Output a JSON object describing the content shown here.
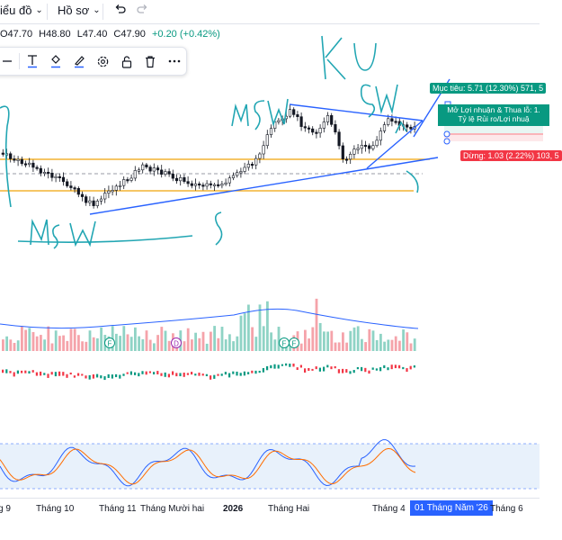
{
  "toolbar": {
    "chart_menu_label": "iểu đồ",
    "profile_menu_label": "Hồ sơ",
    "undo_icon": "undo-icon",
    "redo_icon": "redo-icon"
  },
  "legend": {
    "open": "O47.70",
    "high": "H48.80",
    "low": "L47.40",
    "close": "C47.90",
    "change": "+0.20 (+0.42%)",
    "change_color": "#089981"
  },
  "drawing_toolbar": {
    "icons": [
      "line-tool-icon",
      "text-tool-icon",
      "fill-color-icon",
      "line-color-icon",
      "settings-icon",
      "lock-icon",
      "trash-icon",
      "more-icon"
    ]
  },
  "position_tool": {
    "target_label": "Mục tiêu: 5.71 (12.30%) 571, 5",
    "pnl_line1": "Mở Lợi nhuận & Thua lỗ: 1.",
    "pnl_line2": "Tỷ lệ Rủi ro/Lợi nhuậ",
    "stop_label": "Dừng: 1.03 (2.22%) 103, 5"
  },
  "chart_markers": {
    "volume_markers": [
      "F",
      "D",
      "F",
      "F"
    ]
  },
  "annotations": {
    "handwriting": [
      "KU",
      "SW",
      "MSW",
      "SW",
      "MSW",
      "S"
    ]
  },
  "x_axis": {
    "labels": [
      "g 9",
      "Tháng 10",
      "Tháng 11",
      "Tháng Mười hai",
      "2026",
      "Tháng Hai",
      "Tháng 4",
      "Tháng 6"
    ],
    "current": "01 Tháng Năm '26"
  },
  "colors": {
    "up": "#089981",
    "down": "#f23645",
    "trendline": "#2962ff",
    "support": "#f0a30a",
    "handwriting": "#22a6b3"
  }
}
